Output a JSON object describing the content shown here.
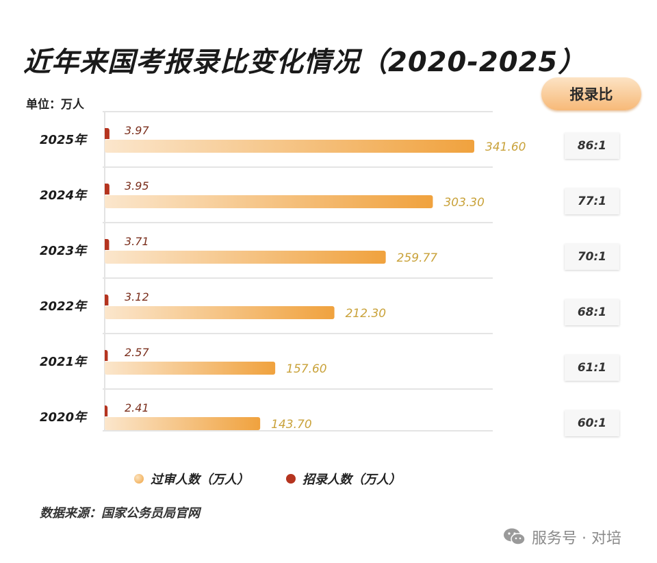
{
  "title": "近年来国考报录比变化情况（2020-2025）",
  "unit": "单位：万人",
  "ratio_header": "报录比",
  "legend": {
    "reviewed": "过审人数（万人）",
    "hired": "招录人数（万人）"
  },
  "source": "数据来源：国家公务员局官网",
  "watermark": "服务号 · 对培",
  "colors": {
    "reviewed_start": "#fbe6cc",
    "reviewed_end": "#f0a23e",
    "hired": "#b5341f",
    "reviewed_label": "#c9a23a",
    "hired_label": "#7a2e1c"
  },
  "chart_data": {
    "type": "bar",
    "orientation": "horizontal",
    "categories": [
      "2025年",
      "2024年",
      "2023年",
      "2022年",
      "2021年",
      "2020年"
    ],
    "series": [
      {
        "name": "过审人数（万人）",
        "values": [
          341.6,
          303.3,
          259.77,
          212.3,
          157.6,
          143.7
        ],
        "labels": [
          "341.60",
          "303.30",
          "259.77",
          "212.30",
          "157.60",
          "143.70"
        ]
      },
      {
        "name": "招录人数（万人）",
        "values": [
          3.97,
          3.95,
          3.71,
          3.12,
          2.57,
          2.41
        ],
        "labels": [
          "3.97",
          "3.95",
          "3.71",
          "3.12",
          "2.57",
          "2.41"
        ]
      }
    ],
    "ratios": [
      "86:1",
      "77:1",
      "70:1",
      "68:1",
      "61:1",
      "60:1"
    ],
    "xlim": [
      0,
      400
    ]
  }
}
